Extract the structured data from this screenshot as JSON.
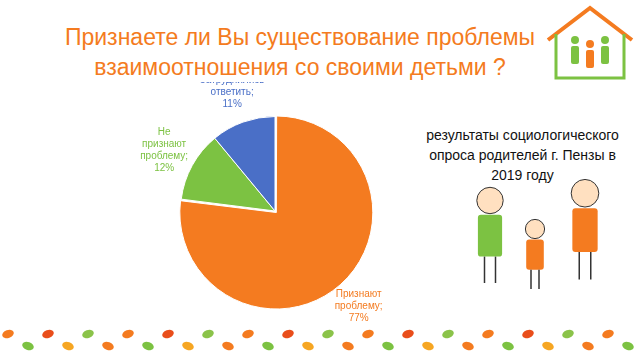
{
  "chart_data": {
    "type": "pie",
    "title": "Признаете ли Вы существование проблемы взаимоотношения со своими детьми ?",
    "subtitle": "результаты социологического опроса родителей г. Пензы в 2019 году",
    "categories": [
      "Признают проблему;",
      "Не признают проблему;",
      "Затруднились ответить;"
    ],
    "values": [
      77,
      12,
      11
    ],
    "value_labels": [
      "77%",
      "12%",
      "11%"
    ],
    "colors": [
      "#f47b20",
      "#7cc242",
      "#4a6fc7"
    ],
    "data_labels": true,
    "legend": false
  }
}
